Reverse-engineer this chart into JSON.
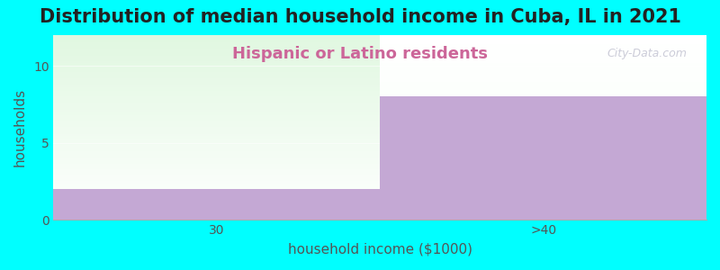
{
  "title": "Distribution of median household income in Cuba, IL in 2021",
  "subtitle": "Hispanic or Latino residents",
  "subtitle_color": "#CC6699",
  "xlabel": "household income ($1000)",
  "ylabel": "households",
  "categories": [
    "30",
    ">40"
  ],
  "values": [
    2,
    8
  ],
  "bar_color": "#C4A8D4",
  "ylim": [
    0,
    12
  ],
  "yticks": [
    0,
    5,
    10
  ],
  "background_color": "#00FFFF",
  "watermark": "City-Data.com",
  "title_fontsize": 15,
  "subtitle_fontsize": 13,
  "axis_label_fontsize": 11,
  "tick_fontsize": 10
}
